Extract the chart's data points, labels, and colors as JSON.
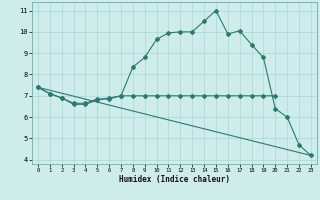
{
  "title": "",
  "xlabel": "Humidex (Indice chaleur)",
  "ylabel": "",
  "xlim": [
    -0.5,
    23.5
  ],
  "ylim": [
    3.8,
    11.4
  ],
  "yticks": [
    4,
    5,
    6,
    7,
    8,
    9,
    10,
    11
  ],
  "xticks": [
    0,
    1,
    2,
    3,
    4,
    5,
    6,
    7,
    8,
    9,
    10,
    11,
    12,
    13,
    14,
    15,
    16,
    17,
    18,
    19,
    20,
    21,
    22,
    23
  ],
  "bg_color": "#ceecea",
  "grid_color": "#aad8d4",
  "line_color": "#2a7a72",
  "series1_x": [
    0,
    1,
    2,
    3,
    4,
    5,
    6,
    7,
    8,
    9,
    10,
    11,
    12,
    13,
    14,
    15,
    16,
    17,
    18,
    19,
    20,
    21,
    22,
    23
  ],
  "series1_y": [
    7.4,
    7.1,
    6.9,
    6.6,
    6.6,
    6.8,
    6.9,
    7.0,
    8.35,
    8.8,
    9.65,
    9.95,
    10.0,
    10.0,
    10.5,
    11.0,
    9.9,
    10.05,
    9.4,
    8.8,
    6.4,
    6.0,
    4.7,
    4.2
  ],
  "series2_x": [
    0,
    1,
    2,
    3,
    4,
    5,
    6,
    7,
    8,
    9,
    10,
    11,
    12,
    13,
    14,
    15,
    16,
    17,
    18,
    19,
    20
  ],
  "series2_y": [
    7.4,
    7.1,
    6.9,
    6.65,
    6.65,
    6.85,
    6.85,
    7.0,
    7.0,
    7.0,
    7.0,
    7.0,
    7.0,
    7.0,
    7.0,
    7.0,
    7.0,
    7.0,
    7.0,
    7.0,
    7.0
  ],
  "series3_x": [
    0,
    23
  ],
  "series3_y": [
    7.4,
    4.2
  ]
}
